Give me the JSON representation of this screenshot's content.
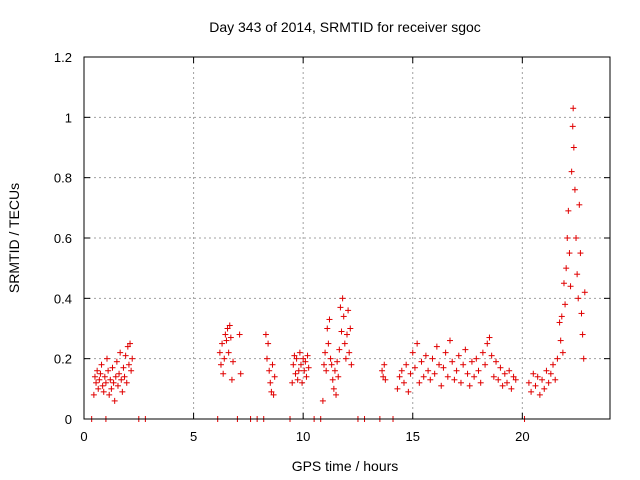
{
  "chart_data": {
    "type": "scatter",
    "title": "Day 343 of 2014, SRMTID for receiver sgoc",
    "xlabel": "GPS time / hours",
    "ylabel": "SRMTID / TECUs",
    "xlim": [
      0,
      24
    ],
    "ylim": [
      0,
      1.2
    ],
    "xticks": [
      0,
      5,
      10,
      15,
      20
    ],
    "xtick_labels": [
      "0",
      "5",
      "10",
      "15",
      "20"
    ],
    "yticks": [
      0,
      0.2,
      0.4,
      0.6,
      0.8,
      1.0,
      1.2
    ],
    "ytick_labels": [
      "0",
      "0.2",
      "0.4",
      "0.6",
      "0.8",
      "1",
      "1.2"
    ],
    "grid": true,
    "marker": "+",
    "series": [
      {
        "name": "SRMTID",
        "color": "#e00000",
        "points": [
          [
            0.35,
            0.0
          ],
          [
            0.45,
            0.08
          ],
          [
            0.5,
            0.14
          ],
          [
            0.55,
            0.12
          ],
          [
            0.6,
            0.16
          ],
          [
            0.65,
            0.1
          ],
          [
            0.7,
            0.13
          ],
          [
            0.75,
            0.15
          ],
          [
            0.8,
            0.18
          ],
          [
            0.85,
            0.11
          ],
          [
            0.9,
            0.09
          ],
          [
            0.95,
            0.14
          ],
          [
            1.0,
            0.12
          ],
          [
            1.0,
            0.0
          ],
          [
            1.05,
            0.2
          ],
          [
            1.1,
            0.16
          ],
          [
            1.15,
            0.08
          ],
          [
            1.2,
            0.13
          ],
          [
            1.25,
            0.1
          ],
          [
            1.3,
            0.17
          ],
          [
            1.35,
            0.12
          ],
          [
            1.4,
            0.06
          ],
          [
            1.45,
            0.14
          ],
          [
            1.5,
            0.19
          ],
          [
            1.55,
            0.11
          ],
          [
            1.6,
            0.15
          ],
          [
            1.65,
            0.22
          ],
          [
            1.7,
            0.13
          ],
          [
            1.75,
            0.09
          ],
          [
            1.8,
            0.17
          ],
          [
            1.85,
            0.14
          ],
          [
            1.9,
            0.21
          ],
          [
            1.95,
            0.12
          ],
          [
            2.0,
            0.24
          ],
          [
            2.05,
            0.18
          ],
          [
            2.1,
            0.25
          ],
          [
            2.15,
            0.16
          ],
          [
            2.2,
            0.2
          ],
          [
            2.5,
            0.0
          ],
          [
            2.8,
            0.0
          ],
          [
            6.1,
            0.0
          ],
          [
            6.2,
            0.22
          ],
          [
            6.25,
            0.18
          ],
          [
            6.3,
            0.25
          ],
          [
            6.35,
            0.15
          ],
          [
            6.4,
            0.2
          ],
          [
            6.45,
            0.28
          ],
          [
            6.5,
            0.26
          ],
          [
            6.55,
            0.3
          ],
          [
            6.6,
            0.22
          ],
          [
            6.65,
            0.31
          ],
          [
            6.7,
            0.27
          ],
          [
            6.75,
            0.13
          ],
          [
            6.8,
            0.19
          ],
          [
            7.0,
            0.0
          ],
          [
            7.1,
            0.28
          ],
          [
            7.15,
            0.15
          ],
          [
            7.6,
            0.0
          ],
          [
            7.9,
            0.0
          ],
          [
            8.2,
            0.0
          ],
          [
            8.3,
            0.28
          ],
          [
            8.35,
            0.2
          ],
          [
            8.4,
            0.25
          ],
          [
            8.45,
            0.16
          ],
          [
            8.5,
            0.12
          ],
          [
            8.55,
            0.09
          ],
          [
            8.6,
            0.18
          ],
          [
            8.65,
            0.08
          ],
          [
            8.7,
            0.14
          ],
          [
            9.4,
            0.0
          ],
          [
            9.5,
            0.12
          ],
          [
            9.55,
            0.18
          ],
          [
            9.6,
            0.21
          ],
          [
            9.65,
            0.15
          ],
          [
            9.7,
            0.2
          ],
          [
            9.75,
            0.13
          ],
          [
            9.8,
            0.16
          ],
          [
            9.85,
            0.22
          ],
          [
            9.9,
            0.18
          ],
          [
            9.95,
            0.12
          ],
          [
            10.0,
            0.2
          ],
          [
            10.05,
            0.16
          ],
          [
            10.1,
            0.19
          ],
          [
            10.15,
            0.14
          ],
          [
            10.2,
            0.21
          ],
          [
            10.25,
            0.17
          ],
          [
            10.5,
            0.0
          ],
          [
            10.8,
            0.0
          ],
          [
            10.9,
            0.06
          ],
          [
            10.95,
            0.18
          ],
          [
            11.0,
            0.22
          ],
          [
            11.05,
            0.16
          ],
          [
            11.1,
            0.3
          ],
          [
            11.15,
            0.25
          ],
          [
            11.2,
            0.33
          ],
          [
            11.25,
            0.2
          ],
          [
            11.3,
            0.18
          ],
          [
            11.35,
            0.13
          ],
          [
            11.4,
            0.1
          ],
          [
            11.45,
            0.16
          ],
          [
            11.5,
            0.08
          ],
          [
            11.55,
            0.19
          ],
          [
            11.6,
            0.14
          ],
          [
            11.65,
            0.23
          ],
          [
            11.7,
            0.37
          ],
          [
            11.75,
            0.29
          ],
          [
            11.8,
            0.4
          ],
          [
            11.85,
            0.34
          ],
          [
            11.9,
            0.25
          ],
          [
            11.95,
            0.2
          ],
          [
            12.0,
            0.28
          ],
          [
            12.05,
            0.36
          ],
          [
            12.1,
            0.22
          ],
          [
            12.15,
            0.3
          ],
          [
            12.2,
            0.18
          ],
          [
            12.5,
            0.0
          ],
          [
            12.8,
            0.0
          ],
          [
            13.5,
            0.0
          ],
          [
            13.6,
            0.16
          ],
          [
            13.65,
            0.14
          ],
          [
            13.7,
            0.18
          ],
          [
            13.75,
            0.13
          ],
          [
            14.1,
            0.0
          ],
          [
            14.3,
            0.1
          ],
          [
            14.4,
            0.14
          ],
          [
            14.5,
            0.16
          ],
          [
            14.6,
            0.12
          ],
          [
            14.7,
            0.18
          ],
          [
            14.8,
            0.09
          ],
          [
            14.9,
            0.15
          ],
          [
            15.0,
            0.22
          ],
          [
            15.1,
            0.17
          ],
          [
            15.2,
            0.25
          ],
          [
            15.3,
            0.12
          ],
          [
            15.4,
            0.19
          ],
          [
            15.5,
            0.14
          ],
          [
            15.6,
            0.21
          ],
          [
            15.7,
            0.16
          ],
          [
            15.8,
            0.13
          ],
          [
            15.9,
            0.2
          ],
          [
            16.0,
            0.15
          ],
          [
            16.1,
            0.24
          ],
          [
            16.2,
            0.18
          ],
          [
            16.3,
            0.11
          ],
          [
            16.4,
            0.17
          ],
          [
            16.5,
            0.22
          ],
          [
            16.6,
            0.14
          ],
          [
            16.7,
            0.26
          ],
          [
            16.8,
            0.19
          ],
          [
            16.9,
            0.13
          ],
          [
            17.0,
            0.16
          ],
          [
            17.1,
            0.21
          ],
          [
            17.2,
            0.12
          ],
          [
            17.3,
            0.18
          ],
          [
            17.4,
            0.23
          ],
          [
            17.5,
            0.15
          ],
          [
            17.6,
            0.11
          ],
          [
            17.7,
            0.19
          ],
          [
            17.8,
            0.14
          ],
          [
            17.9,
            0.2
          ],
          [
            18.0,
            0.16
          ],
          [
            18.1,
            0.12
          ],
          [
            18.2,
            0.22
          ],
          [
            18.3,
            0.18
          ],
          [
            18.4,
            0.25
          ],
          [
            18.5,
            0.27
          ],
          [
            18.6,
            0.21
          ],
          [
            18.7,
            0.14
          ],
          [
            18.8,
            0.19
          ],
          [
            18.9,
            0.13
          ],
          [
            19.0,
            0.17
          ],
          [
            19.1,
            0.11
          ],
          [
            19.2,
            0.15
          ],
          [
            19.3,
            0.12
          ],
          [
            19.4,
            0.16
          ],
          [
            19.5,
            0.1
          ],
          [
            19.6,
            0.14
          ],
          [
            19.7,
            0.13
          ],
          [
            20.1,
            0.0
          ],
          [
            20.3,
            0.12
          ],
          [
            20.4,
            0.09
          ],
          [
            20.5,
            0.15
          ],
          [
            20.6,
            0.11
          ],
          [
            20.7,
            0.14
          ],
          [
            20.8,
            0.08
          ],
          [
            20.9,
            0.13
          ],
          [
            21.0,
            0.1
          ],
          [
            21.1,
            0.16
          ],
          [
            21.2,
            0.12
          ],
          [
            21.3,
            0.15
          ],
          [
            21.4,
            0.18
          ],
          [
            21.5,
            0.13
          ],
          [
            21.6,
            0.2
          ],
          [
            21.7,
            0.32
          ],
          [
            21.75,
            0.26
          ],
          [
            21.8,
            0.34
          ],
          [
            21.85,
            0.22
          ],
          [
            21.9,
            0.45
          ],
          [
            21.95,
            0.38
          ],
          [
            22.0,
            0.5
          ],
          [
            22.05,
            0.6
          ],
          [
            22.1,
            0.69
          ],
          [
            22.15,
            0.55
          ],
          [
            22.2,
            0.44
          ],
          [
            22.25,
            0.82
          ],
          [
            22.3,
            0.97
          ],
          [
            22.32,
            1.03
          ],
          [
            22.35,
            0.9
          ],
          [
            22.4,
            0.76
          ],
          [
            22.45,
            0.6
          ],
          [
            22.5,
            0.48
          ],
          [
            22.55,
            0.4
          ],
          [
            22.6,
            0.71
          ],
          [
            22.65,
            0.55
          ],
          [
            22.7,
            0.35
          ],
          [
            22.75,
            0.28
          ],
          [
            22.8,
            0.2
          ],
          [
            22.85,
            0.42
          ]
        ]
      }
    ]
  }
}
